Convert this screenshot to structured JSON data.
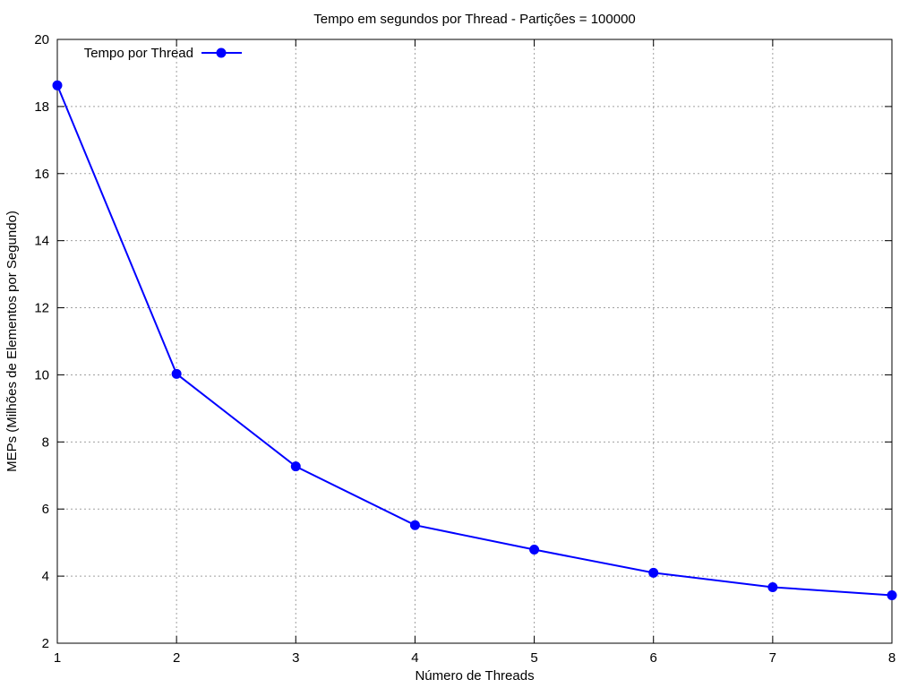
{
  "chart_data": {
    "type": "line",
    "title": "Tempo em segundos por Thread - Partições = 100000",
    "xlabel": "Número de Threads",
    "ylabel": "MEPs (Milhões de Elementos por Segundo)",
    "xlim": [
      1,
      8
    ],
    "ylim": [
      2,
      20
    ],
    "xticks": [
      1,
      2,
      3,
      4,
      5,
      6,
      7,
      8
    ],
    "yticks": [
      2,
      4,
      6,
      8,
      10,
      12,
      14,
      16,
      18,
      20
    ],
    "grid": true,
    "legend_position": "top-left",
    "series": [
      {
        "name": "Tempo por Thread",
        "color": "#0000ff",
        "marker": "circle",
        "x": [
          1,
          2,
          3,
          4,
          5,
          6,
          7,
          8
        ],
        "y": [
          18.63,
          10.03,
          7.27,
          5.52,
          4.79,
          4.1,
          3.67,
          3.43
        ]
      }
    ]
  }
}
